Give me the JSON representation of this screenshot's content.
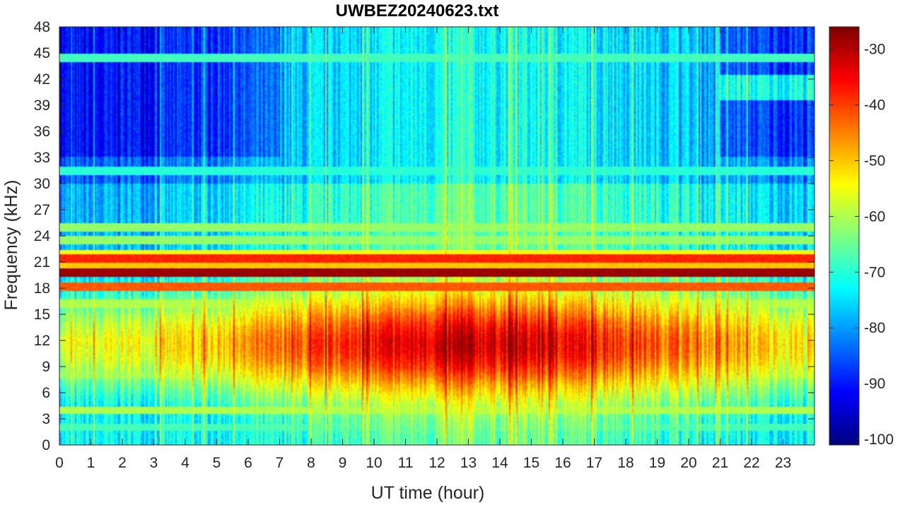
{
  "chart_data": {
    "type": "heatmap",
    "title": "UWBEZ20240623.txt",
    "xlabel": "UT time (hour)",
    "ylabel": "Frequency (kHz)",
    "xlim": [
      0,
      24
    ],
    "ylim": [
      0,
      48
    ],
    "x_ticks": [
      0,
      1,
      2,
      3,
      4,
      5,
      6,
      7,
      8,
      9,
      10,
      11,
      12,
      13,
      14,
      15,
      16,
      17,
      18,
      19,
      20,
      21,
      22,
      23
    ],
    "y_ticks": [
      0,
      3,
      6,
      9,
      12,
      15,
      18,
      21,
      24,
      27,
      30,
      33,
      36,
      39,
      42,
      45,
      48
    ],
    "colorbar": {
      "colormap": "jet",
      "clim": [
        -101,
        -26
      ],
      "ticks": [
        -100,
        -90,
        -80,
        -70,
        -60,
        -50,
        -40,
        -30
      ]
    },
    "bands": [
      {
        "freq_khz": 19.8,
        "level": -28
      },
      {
        "freq_khz": 21.4,
        "level": -38
      },
      {
        "freq_khz": 18.2,
        "level": -42
      },
      {
        "freq_khz": 20.5,
        "level": -50
      },
      {
        "freq_khz": 22.0,
        "level": -55
      },
      {
        "freq_khz": 23.5,
        "level": -62
      },
      {
        "freq_khz": 25.0,
        "level": -62
      },
      {
        "freq_khz": 44.4,
        "level": -68
      },
      {
        "freq_khz": 31.5,
        "level": -70
      },
      {
        "freq_khz": 4.0,
        "level": -60
      },
      {
        "freq_khz": 2.0,
        "level": -68
      },
      {
        "freq_khz": 16.2,
        "level": -60
      },
      {
        "freq_khz": 12.0,
        "level": -58
      },
      {
        "freq_khz": 8.0,
        "level": -62
      }
    ]
  },
  "colors": {
    "axis": "#262626",
    "background": "#ffffff"
  }
}
